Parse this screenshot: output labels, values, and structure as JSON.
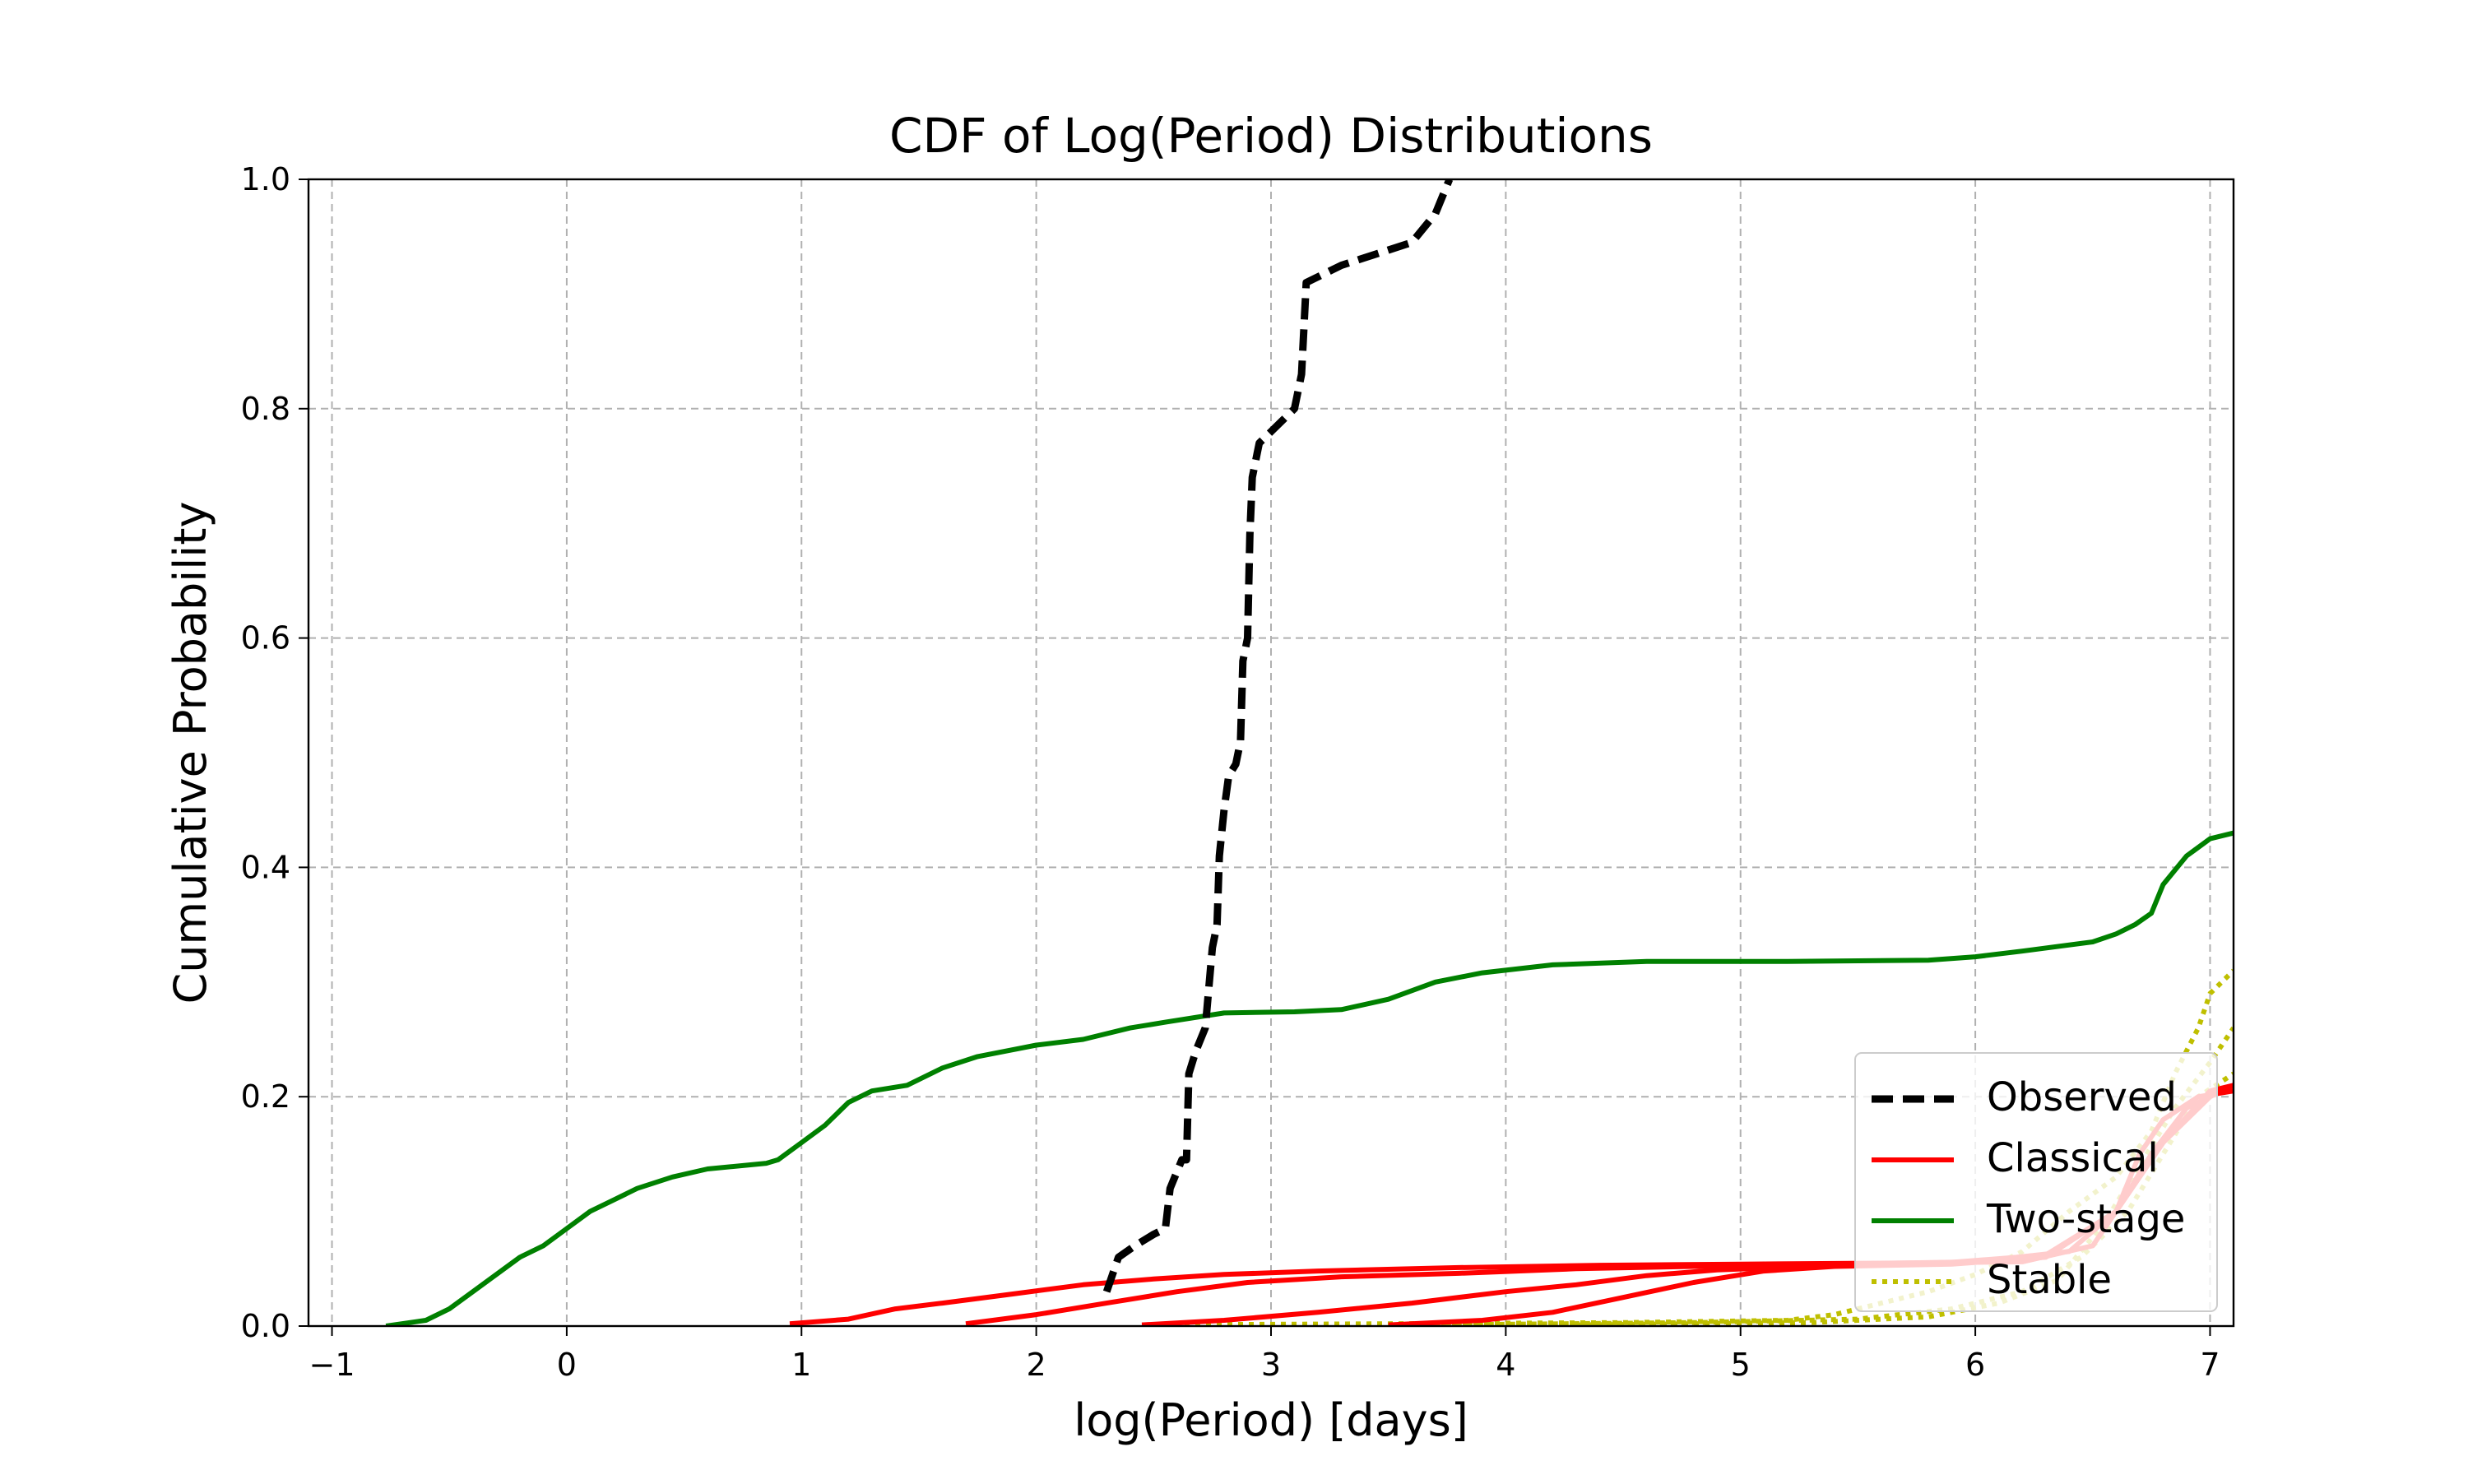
{
  "chart_data": {
    "type": "line",
    "title": "CDF of Log(Period) Distributions",
    "xlabel": "log(Period) [days]",
    "ylabel": "Cumulative Probability",
    "xlim": [
      -1.1,
      7.1
    ],
    "ylim": [
      0.0,
      1.0
    ],
    "xticks": [
      -1,
      0,
      1,
      2,
      3,
      4,
      5,
      6,
      7
    ],
    "xtick_labels": [
      "−1",
      "0",
      "1",
      "2",
      "3",
      "4",
      "5",
      "6",
      "7"
    ],
    "yticks": [
      0.0,
      0.2,
      0.4,
      0.6,
      0.8,
      1.0
    ],
    "ytick_labels": [
      "0.0",
      "0.2",
      "0.4",
      "0.6",
      "0.8",
      "1.0"
    ],
    "grid": true,
    "legend_position": "lower-right",
    "legend": [
      "Observed",
      "Classical",
      "Two-stage",
      "Stable"
    ],
    "series": [
      {
        "name": "Observed",
        "color": "#000000",
        "style": "dashed",
        "points": [
          [
            2.3,
            0.03
          ],
          [
            2.35,
            0.06
          ],
          [
            2.42,
            0.07
          ],
          [
            2.5,
            0.08
          ],
          [
            2.55,
            0.085
          ],
          [
            2.57,
            0.12
          ],
          [
            2.62,
            0.145
          ],
          [
            2.64,
            0.145
          ],
          [
            2.65,
            0.22
          ],
          [
            2.68,
            0.24
          ],
          [
            2.72,
            0.26
          ],
          [
            2.75,
            0.33
          ],
          [
            2.77,
            0.35
          ],
          [
            2.78,
            0.41
          ],
          [
            2.8,
            0.45
          ],
          [
            2.82,
            0.48
          ],
          [
            2.85,
            0.49
          ],
          [
            2.87,
            0.51
          ],
          [
            2.88,
            0.58
          ],
          [
            2.9,
            0.6
          ],
          [
            2.91,
            0.69
          ],
          [
            2.92,
            0.74
          ],
          [
            2.95,
            0.77
          ],
          [
            3.0,
            0.78
          ],
          [
            3.1,
            0.8
          ],
          [
            3.13,
            0.83
          ],
          [
            3.15,
            0.91
          ],
          [
            3.3,
            0.925
          ],
          [
            3.6,
            0.945
          ],
          [
            3.7,
            0.97
          ],
          [
            3.76,
            1.0
          ]
        ]
      },
      {
        "name": "Classical",
        "color": "#ff0000",
        "style": "solid",
        "points": [
          [
            0.95,
            0.002
          ],
          [
            1.2,
            0.006
          ],
          [
            1.4,
            0.015
          ],
          [
            1.6,
            0.02
          ],
          [
            1.9,
            0.028
          ],
          [
            2.2,
            0.036
          ],
          [
            2.5,
            0.041
          ],
          [
            2.8,
            0.045
          ],
          [
            3.2,
            0.048
          ],
          [
            3.8,
            0.051
          ],
          [
            4.4,
            0.053
          ],
          [
            5.0,
            0.054
          ],
          [
            5.7,
            0.055
          ],
          [
            6.2,
            0.056
          ],
          [
            6.5,
            0.07
          ],
          [
            6.6,
            0.1
          ],
          [
            6.7,
            0.15
          ],
          [
            6.8,
            0.18
          ],
          [
            6.95,
            0.2
          ],
          [
            7.1,
            0.205
          ]
        ]
      },
      {
        "name": "Classical",
        "color": "#ff0000",
        "style": "solid",
        "points": [
          [
            1.7,
            0.002
          ],
          [
            2.0,
            0.01
          ],
          [
            2.3,
            0.02
          ],
          [
            2.6,
            0.03
          ],
          [
            2.9,
            0.038
          ],
          [
            3.3,
            0.043
          ],
          [
            3.8,
            0.046
          ],
          [
            4.3,
            0.05
          ],
          [
            4.8,
            0.052
          ],
          [
            5.4,
            0.054
          ],
          [
            6.0,
            0.056
          ],
          [
            6.4,
            0.065
          ],
          [
            6.6,
            0.1
          ],
          [
            6.75,
            0.15
          ],
          [
            6.9,
            0.19
          ],
          [
            7.1,
            0.21
          ]
        ]
      },
      {
        "name": "Classical",
        "color": "#ff0000",
        "style": "solid",
        "points": [
          [
            2.45,
            0.001
          ],
          [
            2.8,
            0.005
          ],
          [
            3.2,
            0.012
          ],
          [
            3.6,
            0.02
          ],
          [
            4.0,
            0.03
          ],
          [
            4.3,
            0.036
          ],
          [
            4.6,
            0.044
          ],
          [
            4.9,
            0.049
          ],
          [
            5.3,
            0.052
          ],
          [
            5.8,
            0.054
          ],
          [
            6.3,
            0.062
          ],
          [
            6.6,
            0.1
          ],
          [
            6.8,
            0.16
          ],
          [
            7.0,
            0.205
          ],
          [
            7.1,
            0.21
          ]
        ]
      },
      {
        "name": "Classical",
        "color": "#ff0000",
        "style": "solid",
        "points": [
          [
            3.5,
            0.001
          ],
          [
            3.9,
            0.005
          ],
          [
            4.2,
            0.012
          ],
          [
            4.5,
            0.025
          ],
          [
            4.8,
            0.038
          ],
          [
            5.1,
            0.048
          ],
          [
            5.4,
            0.052
          ],
          [
            5.9,
            0.054
          ],
          [
            6.3,
            0.06
          ],
          [
            6.6,
            0.1
          ],
          [
            6.8,
            0.16
          ],
          [
            7.0,
            0.2
          ],
          [
            7.1,
            0.21
          ]
        ]
      },
      {
        "name": "Two-stage",
        "color": "#008000",
        "style": "solid",
        "points": [
          [
            -0.77,
            0.0
          ],
          [
            -0.6,
            0.005
          ],
          [
            -0.5,
            0.015
          ],
          [
            -0.4,
            0.03
          ],
          [
            -0.3,
            0.045
          ],
          [
            -0.2,
            0.06
          ],
          [
            -0.1,
            0.07
          ],
          [
            0.0,
            0.085
          ],
          [
            0.1,
            0.1
          ],
          [
            0.2,
            0.11
          ],
          [
            0.3,
            0.12
          ],
          [
            0.45,
            0.13
          ],
          [
            0.6,
            0.137
          ],
          [
            0.85,
            0.142
          ],
          [
            0.9,
            0.145
          ],
          [
            1.0,
            0.16
          ],
          [
            1.1,
            0.175
          ],
          [
            1.2,
            0.195
          ],
          [
            1.3,
            0.205
          ],
          [
            1.45,
            0.21
          ],
          [
            1.6,
            0.225
          ],
          [
            1.75,
            0.235
          ],
          [
            2.0,
            0.245
          ],
          [
            2.2,
            0.25
          ],
          [
            2.4,
            0.26
          ],
          [
            2.55,
            0.265
          ],
          [
            2.8,
            0.273
          ],
          [
            3.1,
            0.274
          ],
          [
            3.3,
            0.276
          ],
          [
            3.5,
            0.285
          ],
          [
            3.7,
            0.3
          ],
          [
            3.9,
            0.308
          ],
          [
            4.2,
            0.315
          ],
          [
            4.6,
            0.318
          ],
          [
            5.2,
            0.318
          ],
          [
            5.8,
            0.319
          ],
          [
            6.0,
            0.322
          ],
          [
            6.2,
            0.327
          ],
          [
            6.5,
            0.335
          ],
          [
            6.6,
            0.342
          ],
          [
            6.68,
            0.35
          ],
          [
            6.75,
            0.36
          ],
          [
            6.8,
            0.385
          ],
          [
            6.9,
            0.41
          ],
          [
            7.0,
            0.425
          ],
          [
            7.1,
            0.43
          ]
        ]
      },
      {
        "name": "Stable",
        "color": "#bfbf00",
        "style": "dotted",
        "points": [
          [
            2.45,
            0.001
          ],
          [
            3.5,
            0.002
          ],
          [
            4.5,
            0.003
          ],
          [
            5.2,
            0.005
          ],
          [
            5.4,
            0.01
          ],
          [
            5.6,
            0.02
          ],
          [
            5.8,
            0.03
          ],
          [
            6.0,
            0.045
          ],
          [
            6.2,
            0.065
          ],
          [
            6.4,
            0.1
          ],
          [
            6.6,
            0.13
          ],
          [
            6.75,
            0.17
          ],
          [
            6.85,
            0.22
          ],
          [
            6.95,
            0.26
          ],
          [
            7.0,
            0.29
          ],
          [
            7.1,
            0.31
          ]
        ]
      },
      {
        "name": "Stable",
        "color": "#bfbf00",
        "style": "dotted",
        "points": [
          [
            3.7,
            0.001
          ],
          [
            4.8,
            0.003
          ],
          [
            5.5,
            0.006
          ],
          [
            5.9,
            0.015
          ],
          [
            6.2,
            0.03
          ],
          [
            6.45,
            0.06
          ],
          [
            6.65,
            0.1
          ],
          [
            6.8,
            0.15
          ],
          [
            6.95,
            0.2
          ],
          [
            7.1,
            0.22
          ]
        ]
      },
      {
        "name": "Stable",
        "color": "#bfbf00",
        "style": "dotted",
        "points": [
          [
            4.3,
            0.001
          ],
          [
            5.3,
            0.003
          ],
          [
            5.8,
            0.008
          ],
          [
            6.1,
            0.02
          ],
          [
            6.35,
            0.04
          ],
          [
            6.55,
            0.09
          ],
          [
            6.7,
            0.14
          ],
          [
            6.85,
            0.19
          ],
          [
            7.0,
            0.23
          ],
          [
            7.1,
            0.26
          ]
        ]
      }
    ]
  }
}
